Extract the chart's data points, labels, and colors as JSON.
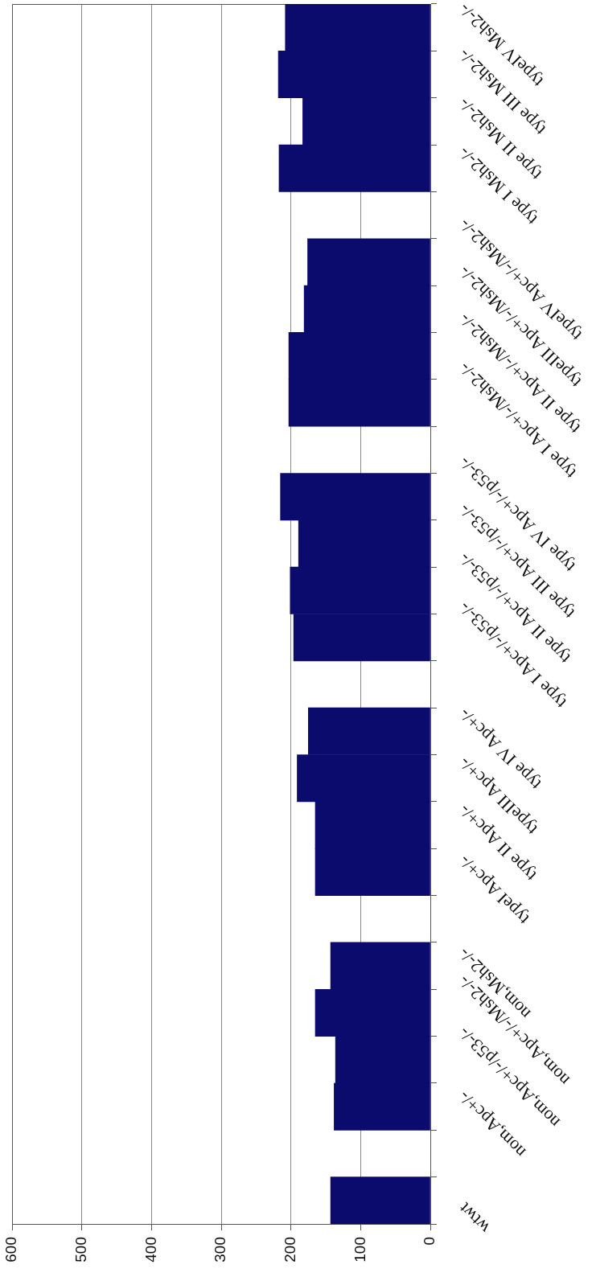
{
  "chart_data": {
    "type": "bar",
    "orientation": "horizontal",
    "categories": [
      "typeIV Msh2-/-",
      "type III Msh2-/-",
      "type II Msh2-/-",
      "type I Msh2-/-",
      null,
      "typeIV Apc+/-/Msh2-/-",
      "typeIII Apc+/-/Msh2-/-",
      "type II Apc+/-/Msh2-/-",
      "type I Apc+/-/Msh2-/-",
      null,
      "type IV Apc+/-/p53-/-",
      "type III Apc+/-/p53-/-",
      "type II Apc+/-/p53-/-",
      "type I Apc+/-/p53-/-",
      null,
      "type IV Apc+/-",
      "typeIII Apc+/-",
      "type II Apc+/-",
      "typeI Apc+/-",
      null,
      "nom,Msh2-/-",
      "nom,Apc+/-/Msh2-/-",
      "nom,Apc+/-/p53-/-",
      "nom,Apc+/-",
      null,
      "wtwt"
    ],
    "values": [
      208,
      218,
      183,
      217,
      null,
      176,
      181,
      203,
      203,
      null,
      215,
      189,
      201,
      196,
      null,
      175,
      191,
      165,
      165,
      null,
      143,
      165,
      136,
      138,
      null,
      143
    ],
    "color": "#0b0b6e",
    "xlim": [
      600,
      0
    ],
    "xticks": [
      0,
      100,
      200,
      300,
      400,
      500,
      600
    ],
    "grid": "x"
  }
}
